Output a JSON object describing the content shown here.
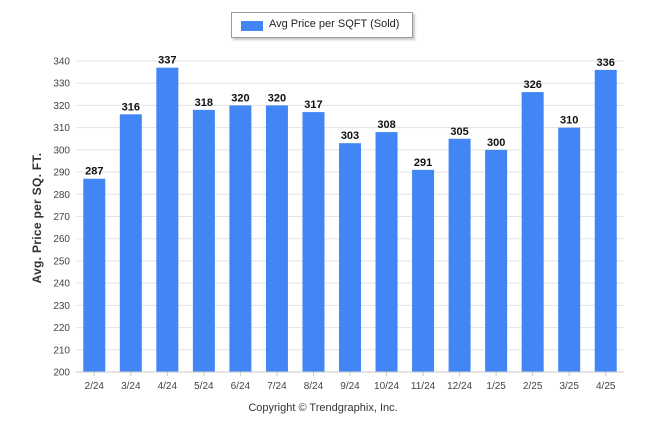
{
  "legend": {
    "label": "Avg Price per SQFT (Sold)",
    "color": "#4285f4"
  },
  "copyright": "Copyright © Trendgraphix, Inc.",
  "chart_data": {
    "type": "bar",
    "categories": [
      "2/24",
      "3/24",
      "4/24",
      "5/24",
      "6/24",
      "7/24",
      "8/24",
      "9/24",
      "10/24",
      "11/24",
      "12/24",
      "1/25",
      "2/25",
      "3/25",
      "4/25"
    ],
    "series": [
      {
        "name": "Avg Price per SQFT (Sold)",
        "values": [
          287,
          316,
          337,
          318,
          320,
          320,
          317,
          303,
          308,
          291,
          305,
          300,
          326,
          310,
          336
        ]
      }
    ],
    "ylabel": "Avg. Price per SQ. FT.",
    "xlabel": "",
    "ylim": [
      200,
      340
    ],
    "yticks": [
      200,
      210,
      220,
      230,
      240,
      250,
      260,
      270,
      280,
      290,
      300,
      310,
      320,
      330,
      340
    ],
    "grid": true,
    "legend_position": "top-center",
    "bar_color": "#4285f4"
  }
}
